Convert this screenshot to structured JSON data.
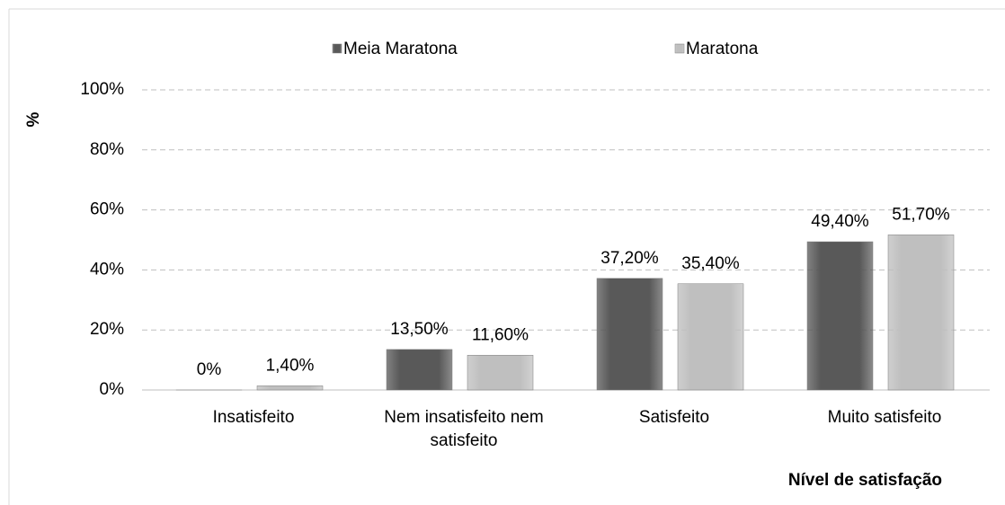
{
  "chart_data": {
    "type": "bar",
    "y_label": "%",
    "x_label": "Nível de satisfação",
    "categories": [
      "Insatisfeito",
      "Nem insatisfeito nem satisfeito",
      "Satisfeito",
      "Muito satisfeito"
    ],
    "series": [
      {
        "name": "Meia Maratona",
        "color": "#595959",
        "values": [
          0,
          13.5,
          37.2,
          49.4
        ],
        "value_labels": [
          "0%",
          "13,50%",
          "37,20%",
          "49,40%"
        ]
      },
      {
        "name": "Maratona",
        "color": "#bfbfbf",
        "values": [
          1.4,
          11.6,
          35.4,
          51.7
        ],
        "value_labels": [
          "1,40%",
          "11,60%",
          "35,40%",
          "51,70%"
        ]
      }
    ],
    "ylim": [
      0,
      100
    ],
    "yticks": [
      {
        "value": 0,
        "label": "0%"
      },
      {
        "value": 20,
        "label": "20%"
      },
      {
        "value": 40,
        "label": "40%"
      },
      {
        "value": 60,
        "label": "60%"
      },
      {
        "value": 80,
        "label": "80%"
      },
      {
        "value": 100,
        "label": "100%"
      }
    ],
    "grid": true,
    "legend": "top"
  }
}
